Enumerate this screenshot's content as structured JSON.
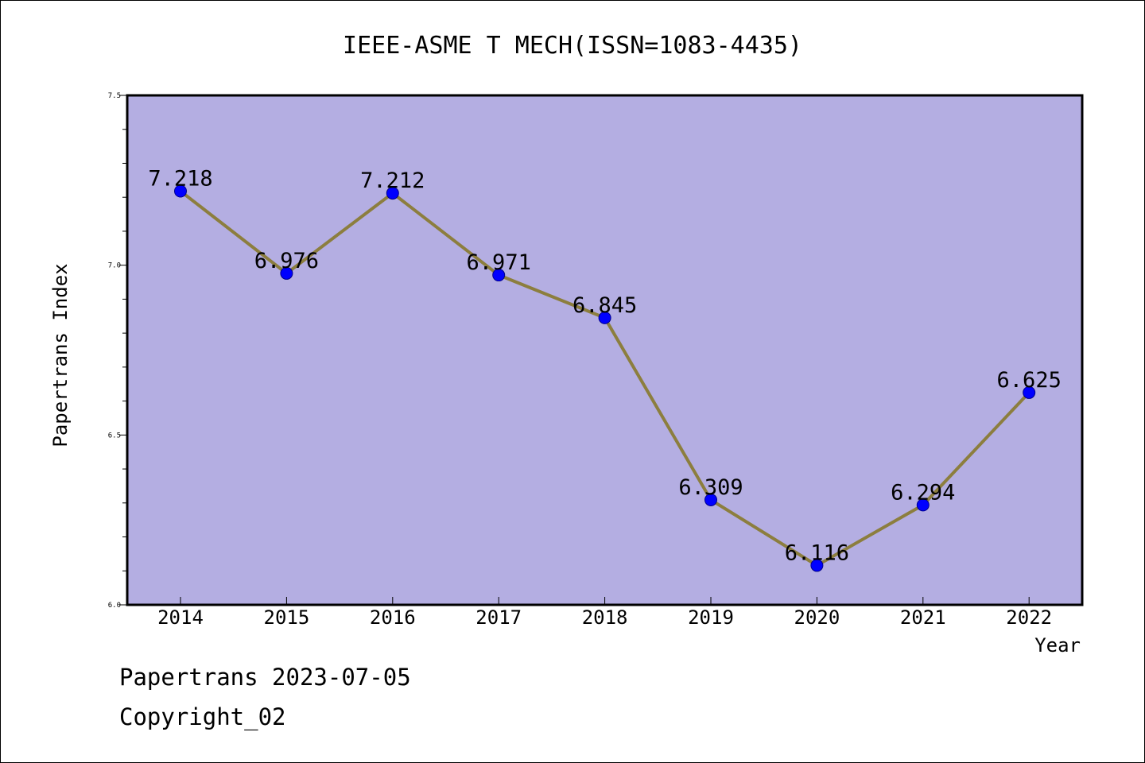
{
  "chart_data": {
    "type": "line",
    "title": "IEEE-ASME T MECH(ISSN=1083-4435)",
    "xlabel": "Year",
    "ylabel": "Papertrans Index",
    "x": [
      "2014",
      "2015",
      "2016",
      "2017",
      "2018",
      "2019",
      "2020",
      "2021",
      "2022"
    ],
    "series": [
      {
        "values": [
          7.218,
          6.976,
          7.212,
          6.971,
          6.845,
          6.309,
          6.116,
          6.294,
          6.625
        ],
        "labels": [
          "7.218",
          "6.976",
          "7.212",
          "6.971",
          "6.845",
          "6.309",
          "6.116",
          "6.294",
          "6.625"
        ]
      }
    ],
    "ylim": [
      6.0,
      7.5
    ],
    "yticks": [
      "6.0",
      "6.5",
      "7.0",
      "7.5"
    ],
    "grid": false,
    "colors": {
      "plot_background": "#b4aee2",
      "line": "#8c7e3e",
      "marker": "#0000ff"
    }
  },
  "footer": {
    "date_line": "Papertrans 2023-07-05",
    "copyright": "Copyright_02"
  }
}
